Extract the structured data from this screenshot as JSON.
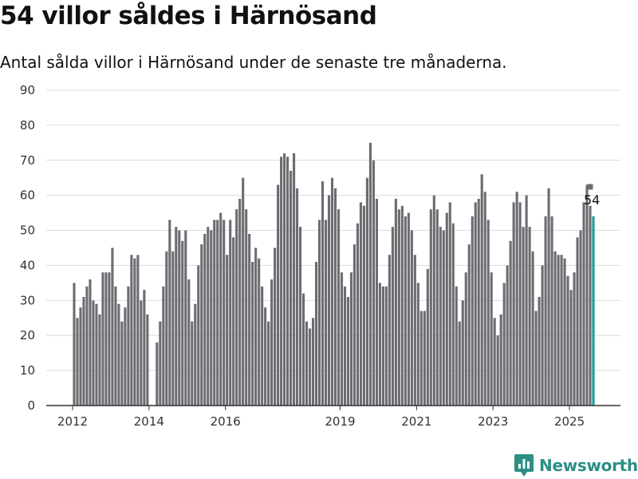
{
  "title": "54 villor såldes i Härnösand",
  "subtitle": "Antal sålda villor i Härnösand under de senaste tre månaderna.",
  "brand": {
    "name": "Newsworthy",
    "icon": "newsworthy-logo-icon",
    "color": "#2b8f84"
  },
  "chart_data": {
    "type": "bar",
    "start_month": "2012-01",
    "values": [
      35,
      25,
      28,
      31,
      34,
      36,
      30,
      29,
      26,
      38,
      38,
      38,
      45,
      34,
      29,
      24,
      28,
      34,
      43,
      42,
      43,
      30,
      33,
      26,
      null,
      null,
      18,
      24,
      34,
      44,
      53,
      44,
      51,
      50,
      47,
      50,
      36,
      24,
      29,
      40,
      46,
      49,
      51,
      50,
      53,
      53,
      55,
      53,
      43,
      53,
      48,
      56,
      59,
      65,
      56,
      49,
      41,
      45,
      42,
      34,
      28,
      24,
      36,
      45,
      63,
      71,
      72,
      71,
      67,
      72,
      62,
      51,
      32,
      24,
      22,
      25,
      41,
      53,
      64,
      53,
      60,
      65,
      62,
      56,
      38,
      34,
      31,
      38,
      46,
      52,
      58,
      57,
      65,
      75,
      70,
      59,
      35,
      34,
      34,
      43,
      51,
      59,
      56,
      57,
      54,
      55,
      50,
      43,
      35,
      27,
      27,
      39,
      56,
      60,
      56,
      51,
      50,
      55,
      58,
      52,
      34,
      24,
      30,
      38,
      46,
      54,
      58,
      59,
      66,
      61,
      53,
      38,
      25,
      20,
      26,
      35,
      40,
      47,
      58,
      61,
      58,
      51,
      60,
      51,
      44,
      27,
      31,
      40,
      54,
      62,
      54,
      44,
      43,
      43,
      42,
      37,
      33,
      38,
      48,
      50,
      58,
      63,
      57,
      54
    ],
    "highlight_value": 54,
    "highlight_label": "54",
    "marker_value": 63,
    "x_ticks": [
      {
        "label": "2012",
        "year": 2012
      },
      {
        "label": "2014",
        "year": 2014
      },
      {
        "label": "2016",
        "year": 2016
      },
      {
        "label": "2019",
        "year": 2019
      },
      {
        "label": "2021",
        "year": 2021
      },
      {
        "label": "2023",
        "year": 2023
      },
      {
        "label": "2025",
        "year": 2025
      }
    ],
    "y_ticks": [
      0,
      10,
      20,
      30,
      40,
      50,
      60,
      70,
      80,
      90
    ],
    "ylim": [
      0,
      90
    ],
    "grid": true,
    "legend": "none",
    "bar_color": "#6d6c72",
    "highlight_color": "#1a9c93",
    "grid_color": "#dcdcdc",
    "axis_color": "#333333"
  }
}
